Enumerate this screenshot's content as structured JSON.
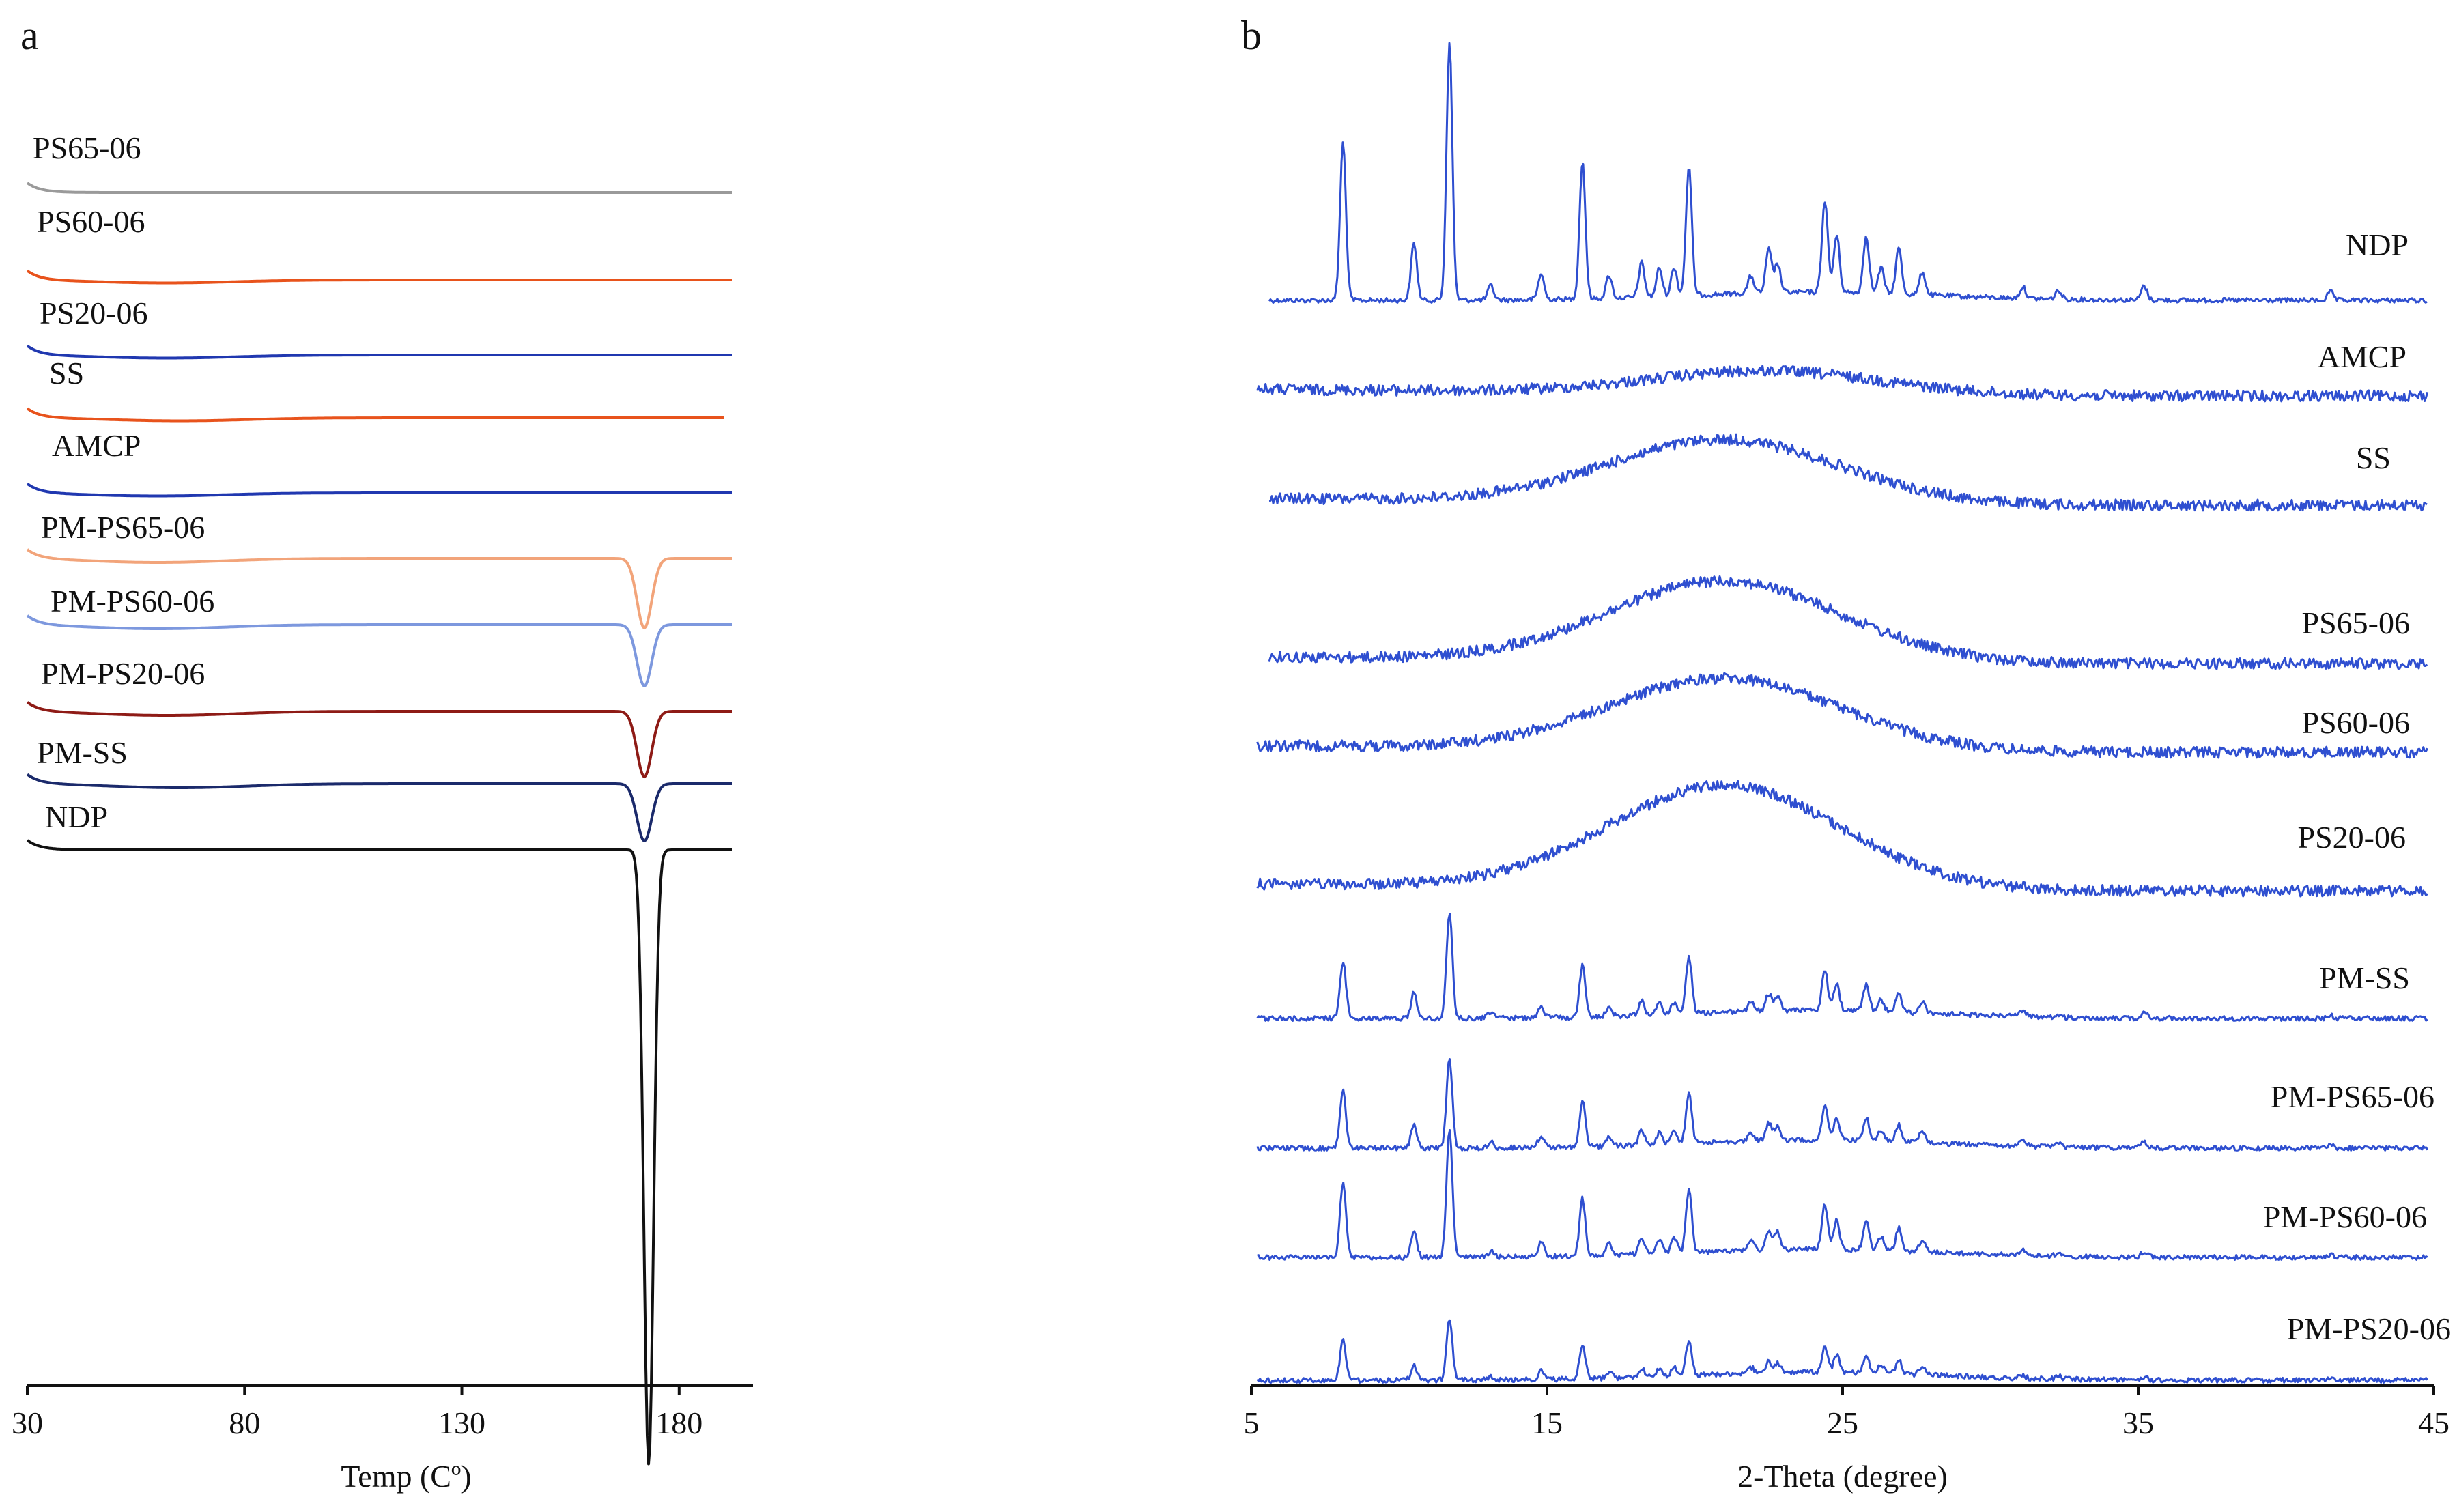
{
  "chart_data": [
    {
      "panel": "a",
      "type": "line",
      "title": "",
      "xlabel": "Temp (Cº)",
      "ylabel": "",
      "xlim": [
        30,
        197
      ],
      "xticks": [
        30,
        80,
        130,
        180
      ],
      "grid": false,
      "series": [
        {
          "name": "PS65-06",
          "color": "#9a9a9a",
          "features": []
        },
        {
          "name": "PS60-06",
          "color": "#e8531c",
          "features": [
            {
              "type": "broad_endotherm",
              "center": 62,
              "depth": 0.15
            }
          ]
        },
        {
          "name": "PS20-06",
          "color": "#2038b0",
          "features": [
            {
              "type": "broad_endotherm",
              "center": 62,
              "depth": 0.15
            }
          ]
        },
        {
          "name": "SS",
          "color": "#e8531c",
          "features": [
            {
              "type": "broad_endotherm",
              "center": 65,
              "depth": 0.15
            }
          ]
        },
        {
          "name": "AMCP",
          "color": "#2038b0",
          "features": [
            {
              "type": "broad_endotherm",
              "center": 60,
              "depth": 0.15
            }
          ]
        },
        {
          "name": "PM-PS65-06",
          "color": "#f2a47a",
          "features": [
            {
              "type": "broad_endotherm",
              "center": 60,
              "depth": 0.2
            },
            {
              "type": "melting_peak",
              "center": 172,
              "depth": 3.4
            }
          ]
        },
        {
          "name": "PM-PS60-06",
          "color": "#7d98de",
          "features": [
            {
              "type": "broad_endotherm",
              "center": 60,
              "depth": 0.2
            },
            {
              "type": "melting_peak",
              "center": 172,
              "depth": 3.0
            }
          ]
        },
        {
          "name": "PM-PS20-06",
          "color": "#8e1b16",
          "features": [
            {
              "type": "broad_endotherm",
              "center": 62,
              "depth": 0.2
            },
            {
              "type": "melting_peak",
              "center": 172,
              "depth": 3.2
            }
          ]
        },
        {
          "name": "PM-SS",
          "color": "#1b2a6b",
          "features": [
            {
              "type": "broad_endotherm",
              "center": 65,
              "depth": 0.2
            },
            {
              "type": "melting_peak",
              "center": 172,
              "depth": 2.8
            }
          ]
        },
        {
          "name": "NDP",
          "color": "#111111",
          "features": [
            {
              "type": "melting_peak",
              "center": 173,
              "depth": 30.0
            }
          ]
        }
      ]
    },
    {
      "panel": "b",
      "type": "line",
      "title": "",
      "xlabel": "2-Theta (degree)",
      "ylabel": "",
      "xlim": [
        5,
        45
      ],
      "xticks": [
        5,
        15,
        25,
        35,
        45
      ],
      "grid": false,
      "color": "#2f4fd0",
      "ndp_reflections_2theta": [
        8.1,
        10.5,
        11.7,
        13.1,
        14.8,
        16.2,
        17.1,
        18.2,
        18.8,
        19.3,
        19.8,
        21.9,
        22.5,
        22.8,
        24.4,
        24.8,
        25.8,
        26.3,
        26.9,
        27.7,
        31.1,
        32.3,
        35.2,
        41.5
      ],
      "series": [
        {
          "name": "NDP",
          "pattern": "crystalline",
          "peak_heights": [
            0.55,
            0.2,
            0.9,
            0.05,
            0.09,
            0.48,
            0.08,
            0.12,
            0.1,
            0.1,
            0.45,
            0.06,
            0.15,
            0.1,
            0.32,
            0.2,
            0.2,
            0.09,
            0.16,
            0.08,
            0.04,
            0.03,
            0.05,
            0.03
          ]
        },
        {
          "name": "AMCP",
          "pattern": "amorphous",
          "halo_center": 22.5,
          "halo_height": 0.08
        },
        {
          "name": "SS",
          "pattern": "amorphous",
          "halo_center": 21.0,
          "halo_height": 0.22
        },
        {
          "name": "PS65-06",
          "pattern": "amorphous",
          "halo_center": 21.0,
          "halo_height": 0.28
        },
        {
          "name": "PS60-06",
          "pattern": "amorphous",
          "halo_center": 21.0,
          "halo_height": 0.25
        },
        {
          "name": "PS20-06",
          "pattern": "amorphous",
          "halo_center": 21.0,
          "halo_height": 0.36
        },
        {
          "name": "PM-SS",
          "pattern": "crystalline",
          "peak_heights": [
            0.2,
            0.09,
            0.37,
            0.02,
            0.04,
            0.18,
            0.03,
            0.05,
            0.04,
            0.04,
            0.2,
            0.03,
            0.06,
            0.05,
            0.14,
            0.09,
            0.09,
            0.04,
            0.07,
            0.04,
            0.02,
            0.01,
            0.02,
            0.01
          ]
        },
        {
          "name": "PM-PS65-06",
          "pattern": "crystalline",
          "peak_heights": [
            0.2,
            0.08,
            0.31,
            0.02,
            0.04,
            0.16,
            0.03,
            0.05,
            0.04,
            0.04,
            0.17,
            0.03,
            0.06,
            0.05,
            0.12,
            0.08,
            0.08,
            0.04,
            0.06,
            0.04,
            0.02,
            0.01,
            0.02,
            0.01
          ]
        },
        {
          "name": "PM-PS60-06",
          "pattern": "crystalline",
          "peak_heights": [
            0.26,
            0.09,
            0.45,
            0.02,
            0.05,
            0.2,
            0.04,
            0.06,
            0.05,
            0.05,
            0.22,
            0.03,
            0.07,
            0.06,
            0.16,
            0.1,
            0.1,
            0.05,
            0.08,
            0.04,
            0.02,
            0.01,
            0.02,
            0.01
          ]
        },
        {
          "name": "PM-PS20-06",
          "pattern": "crystalline",
          "peak_heights": [
            0.14,
            0.05,
            0.21,
            0.01,
            0.03,
            0.12,
            0.02,
            0.03,
            0.03,
            0.03,
            0.12,
            0.02,
            0.04,
            0.03,
            0.09,
            0.06,
            0.06,
            0.03,
            0.05,
            0.03,
            0.01,
            0.01,
            0.01,
            0.01
          ]
        }
      ]
    }
  ]
}
